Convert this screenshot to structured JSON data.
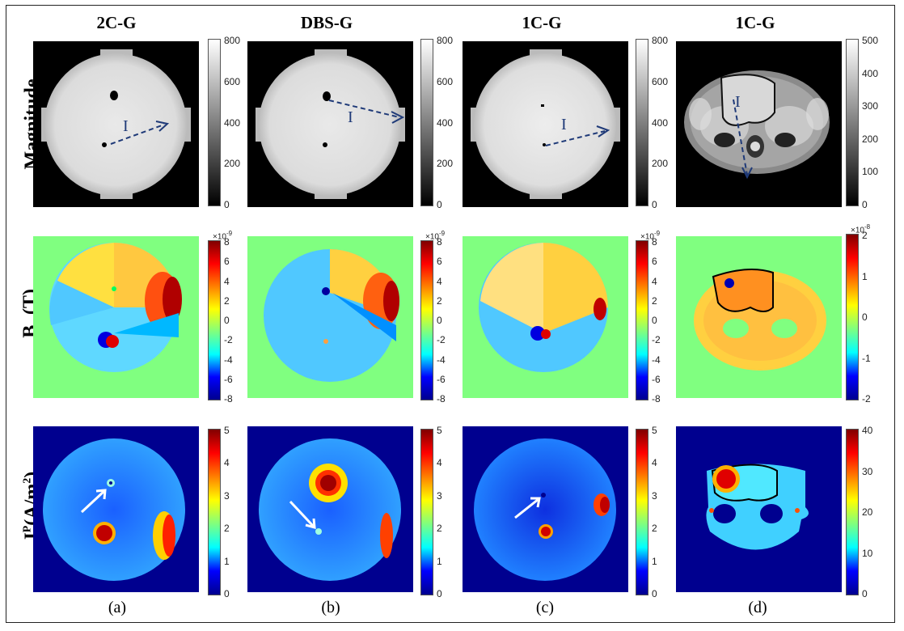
{
  "columns": [
    "2C-G",
    "DBS-G",
    "1C-G",
    "1C-G"
  ],
  "subfigure_labels": [
    "(a)",
    "(b)",
    "(c)",
    "(d)"
  ],
  "rows": {
    "magnitude": {
      "label": "Magnitude"
    },
    "bz": {
      "label_main": "B",
      "label_sub": "z",
      "label_unit": "(T)"
    },
    "jp": {
      "label_main": "J",
      "label_sup": "P",
      "label_unit": "(A/m",
      "label_unit_sup": "2",
      "label_unit_close": ")"
    }
  },
  "current_label": "I",
  "colorbars": {
    "magnitude_phantom": {
      "ticks": [
        "800",
        "600",
        "400",
        "200",
        "0"
      ],
      "range": [
        0,
        800
      ]
    },
    "magnitude_brain": {
      "ticks": [
        "500",
        "400",
        "300",
        "200",
        "100",
        "0"
      ],
      "range": [
        0,
        500
      ]
    },
    "bz_phantom": {
      "exponent": "×10-9",
      "ticks": [
        "8",
        "6",
        "4",
        "2",
        "0",
        "-2",
        "-4",
        "-6",
        "-8"
      ],
      "range": [
        -8,
        8
      ]
    },
    "bz_brain": {
      "exponent": "×10-8",
      "ticks": [
        "2",
        "1",
        "0",
        "-1",
        "-2"
      ],
      "range": [
        -2,
        2
      ]
    },
    "jp_phantom": {
      "ticks": [
        "5",
        "4",
        "3",
        "2",
        "1",
        "0"
      ],
      "range": [
        0,
        5
      ]
    },
    "jp_brain": {
      "ticks": [
        "40",
        "30",
        "20",
        "10",
        "0"
      ],
      "range": [
        0,
        40
      ]
    }
  },
  "colors": {
    "jet": [
      "#00008f",
      "#0000ff",
      "#00ffff",
      "#7fff7f",
      "#ffff00",
      "#ff7f00",
      "#ff0000",
      "#800000"
    ],
    "bz_background": "#80ff80",
    "jp_background": "#00008f",
    "arrow_dashed": "#1f3a78"
  }
}
